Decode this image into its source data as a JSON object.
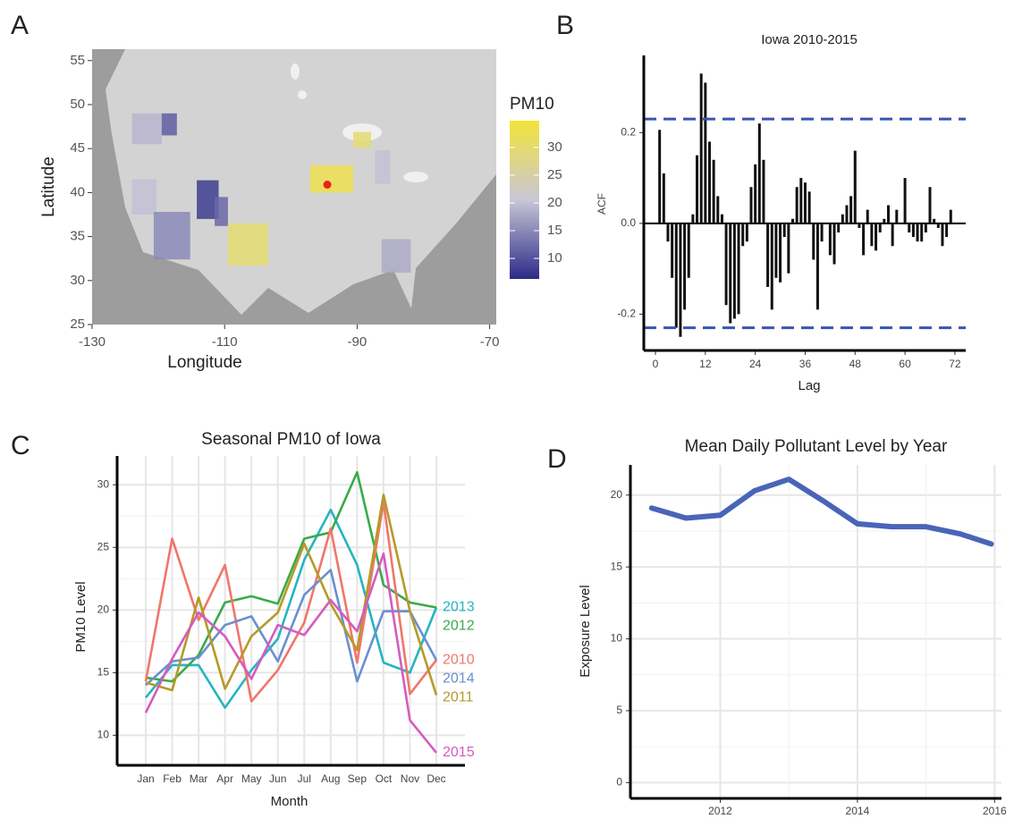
{
  "chart_data": [
    {
      "type": "map",
      "panel": "A",
      "xlabel": "Longitude",
      "ylabel": "Latitude",
      "legend_title": "PM10",
      "xlim": [
        -130,
        -69
      ],
      "ylim": [
        25,
        56.3
      ],
      "xticks": [
        -130,
        -110,
        -90,
        -70
      ],
      "yticks": [
        25,
        30,
        35,
        40,
        45,
        50,
        55
      ],
      "colorlim": [
        6.3,
        34.8
      ],
      "colorticks": [
        10,
        15,
        20,
        25,
        30
      ],
      "colors": [
        "#2b2a88",
        "#c9c6d6",
        "#f2e43a"
      ],
      "regions": [
        {
          "lon": [
            -124,
            -119.5
          ],
          "lat": [
            45.5,
            49
          ],
          "value": 19
        },
        {
          "lon": [
            -119.5,
            -117.2
          ],
          "lat": [
            46.5,
            49
          ],
          "value": 11
        },
        {
          "lon": [
            -124,
            -120.3
          ],
          "lat": [
            37.5,
            41.5
          ],
          "value": 20
        },
        {
          "lon": [
            -114.2,
            -110.9
          ],
          "lat": [
            37,
            41.4
          ],
          "value": 8
        },
        {
          "lon": [
            -111.5,
            -109.5
          ],
          "lat": [
            36.2,
            39.5
          ],
          "value": 12
        },
        {
          "lon": [
            -120.7,
            -115.2
          ],
          "lat": [
            32.4,
            37.8
          ],
          "value": 15
        },
        {
          "lon": [
            -109.5,
            -103.4
          ],
          "lat": [
            31.7,
            36.5
          ],
          "value": 30
        },
        {
          "lon": [
            -97.1,
            -90.6
          ],
          "lat": [
            40,
            43.1
          ],
          "value": 33
        },
        {
          "lon": [
            -90.6,
            -87.9
          ],
          "lat": [
            45.1,
            46.9
          ],
          "value": 30
        },
        {
          "lon": [
            -87.3,
            -85
          ],
          "lat": [
            41,
            44.8
          ],
          "value": 20
        },
        {
          "lon": [
            -86.3,
            -81.9
          ],
          "lat": [
            30.9,
            34.7
          ],
          "value": 18
        }
      ],
      "point": {
        "lon": -94.5,
        "lat": 40.9,
        "color": "#e8231f"
      }
    },
    {
      "type": "acf",
      "panel": "B",
      "title": "Iowa 2010-2015",
      "xlabel": "Lag",
      "ylabel": "ACF",
      "color": "#111111",
      "ci": 0.23,
      "ci_color": "#3a55b0",
      "xlim": [
        -2.8,
        74.6
      ],
      "ylim": [
        -0.28,
        0.37
      ],
      "xticks": [
        0,
        12,
        24,
        36,
        48,
        60,
        72
      ],
      "yticks": [
        -0.2,
        {
          "value": 0,
          "label": "0.0"
        },
        0.2
      ],
      "x": [
        1,
        2,
        3,
        4,
        5,
        6,
        7,
        8,
        9,
        10,
        11,
        12,
        13,
        14,
        15,
        16,
        17,
        18,
        19,
        20,
        21,
        22,
        23,
        24,
        25,
        26,
        27,
        28,
        29,
        30,
        31,
        32,
        33,
        34,
        35,
        36,
        37,
        38,
        39,
        40,
        41,
        42,
        43,
        44,
        45,
        46,
        47,
        48,
        49,
        50,
        51,
        52,
        53,
        54,
        55,
        56,
        57,
        58,
        59,
        60,
        61,
        62,
        63,
        64,
        65,
        66,
        67,
        68,
        69,
        70,
        71,
        72
      ],
      "values": [
        0.206,
        0.11,
        -0.04,
        -0.12,
        -0.23,
        -0.25,
        -0.19,
        -0.12,
        0.02,
        0.15,
        0.33,
        0.31,
        0.18,
        0.14,
        0.06,
        0.02,
        -0.18,
        -0.22,
        -0.21,
        -0.2,
        -0.05,
        -0.04,
        0.08,
        0.13,
        0.22,
        0.14,
        -0.14,
        -0.19,
        -0.12,
        -0.13,
        -0.03,
        -0.11,
        0.01,
        0.08,
        0.1,
        0.09,
        0.07,
        -0.08,
        -0.19,
        -0.04,
        0,
        -0.07,
        -0.09,
        -0.02,
        0.02,
        0.04,
        0.06,
        0.16,
        -0.01,
        -0.07,
        0.03,
        -0.05,
        -0.06,
        -0.02,
        0.01,
        0.04,
        -0.05,
        0.03,
        0,
        0.1,
        -0.02,
        -0.03,
        -0.04,
        -0.04,
        -0.02,
        0.08,
        0.01,
        -0.01,
        -0.05,
        -0.03,
        0.03,
        0
      ]
    },
    {
      "type": "line",
      "panel": "C",
      "title": "Seasonal PM10 of Iowa",
      "xlabel": "Month",
      "ylabel": "PM10 Level",
      "grid": true,
      "ylim": [
        7.6,
        32.3
      ],
      "yticks": [
        10,
        15,
        20,
        25,
        30
      ],
      "categories": [
        "Jan",
        "Feb",
        "Mar",
        "Apr",
        "May",
        "Jun",
        "Jul",
        "Aug",
        "Sep",
        "Oct",
        "Nov",
        "Dec"
      ],
      "series": [
        {
          "name": "2013",
          "color": "#25b5c0",
          "values": [
            13,
            15.6,
            15.6,
            12.2,
            15.2,
            17.7,
            24,
            28,
            23.6,
            15.8,
            15,
            20.2
          ]
        },
        {
          "name": "2012",
          "color": "#3aaa4a",
          "values": [
            14.6,
            14.3,
            16.4,
            20.6,
            21.1,
            20.5,
            25.7,
            26.2,
            31,
            22,
            20.6,
            20.2
          ]
        },
        {
          "name": "2010",
          "color": "#f0766a",
          "values": [
            14.3,
            25.7,
            19.2,
            23.6,
            12.7,
            15.2,
            19,
            26.5,
            15.8,
            28.6,
            13.3,
            16
          ]
        },
        {
          "name": "2014",
          "color": "#6a8fd0",
          "values": [
            14,
            15.9,
            16.2,
            18.8,
            19.5,
            15.9,
            21.2,
            23.2,
            14.3,
            19.9,
            19.9,
            16
          ]
        },
        {
          "name": "2011",
          "color": "#b59a2a",
          "values": [
            14.2,
            13.6,
            21,
            13.7,
            17.9,
            19.8,
            25.3,
            20.5,
            16.8,
            29.2,
            19.9,
            13.2
          ]
        },
        {
          "name": "2015",
          "color": "#d45cc0",
          "values": [
            11.8,
            16.1,
            19.8,
            17.9,
            14.5,
            18.8,
            18,
            20.8,
            18.3,
            24.5,
            11.2,
            8.6
          ]
        }
      ]
    },
    {
      "type": "smooth",
      "panel": "D",
      "title": "Mean Daily Pollutant Level by Year",
      "ylabel": "Exposure Level",
      "color": "#4a64b8",
      "grid": true,
      "xlim": [
        2010.69,
        2016.1
      ],
      "ylim": [
        -1.1,
        22.1
      ],
      "xticks": [
        2012,
        2014,
        2016
      ],
      "yticks": [
        0,
        5,
        10,
        15,
        20
      ],
      "x": [
        2011,
        2011.5,
        2012,
        2012.5,
        2013,
        2013.5,
        2014,
        2014.5,
        2015,
        2015.5,
        2015.95
      ],
      "values": [
        19.1,
        18.4,
        18.6,
        20.3,
        21.1,
        19.6,
        18,
        17.8,
        17.8,
        17.3,
        16.6
      ]
    }
  ]
}
